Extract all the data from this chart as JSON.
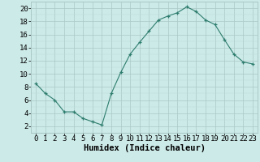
{
  "x": [
    0,
    1,
    2,
    3,
    4,
    5,
    6,
    7,
    8,
    9,
    10,
    11,
    12,
    13,
    14,
    15,
    16,
    17,
    18,
    19,
    20,
    21,
    22,
    23
  ],
  "y": [
    8.5,
    7.0,
    6.0,
    4.2,
    4.2,
    3.2,
    2.7,
    2.2,
    7.0,
    10.2,
    13.0,
    14.8,
    16.5,
    18.2,
    18.8,
    19.3,
    20.2,
    19.5,
    18.2,
    17.5,
    15.2,
    13.0,
    11.8,
    11.5
  ],
  "line_color": "#2e7d6e",
  "marker_color": "#2e7d6e",
  "bg_color": "#cceae8",
  "grid_color_major": "#aac8c5",
  "grid_color_minor": "#bbdad8",
  "xlabel": "Humidex (Indice chaleur)",
  "xlim": [
    -0.5,
    23.5
  ],
  "ylim": [
    1,
    21
  ],
  "yticks": [
    2,
    4,
    6,
    8,
    10,
    12,
    14,
    16,
    18,
    20
  ],
  "xticks": [
    0,
    1,
    2,
    3,
    4,
    5,
    6,
    7,
    8,
    9,
    10,
    11,
    12,
    13,
    14,
    15,
    16,
    17,
    18,
    19,
    20,
    21,
    22,
    23
  ],
  "xlabel_fontsize": 7.5,
  "tick_fontsize": 6.5
}
